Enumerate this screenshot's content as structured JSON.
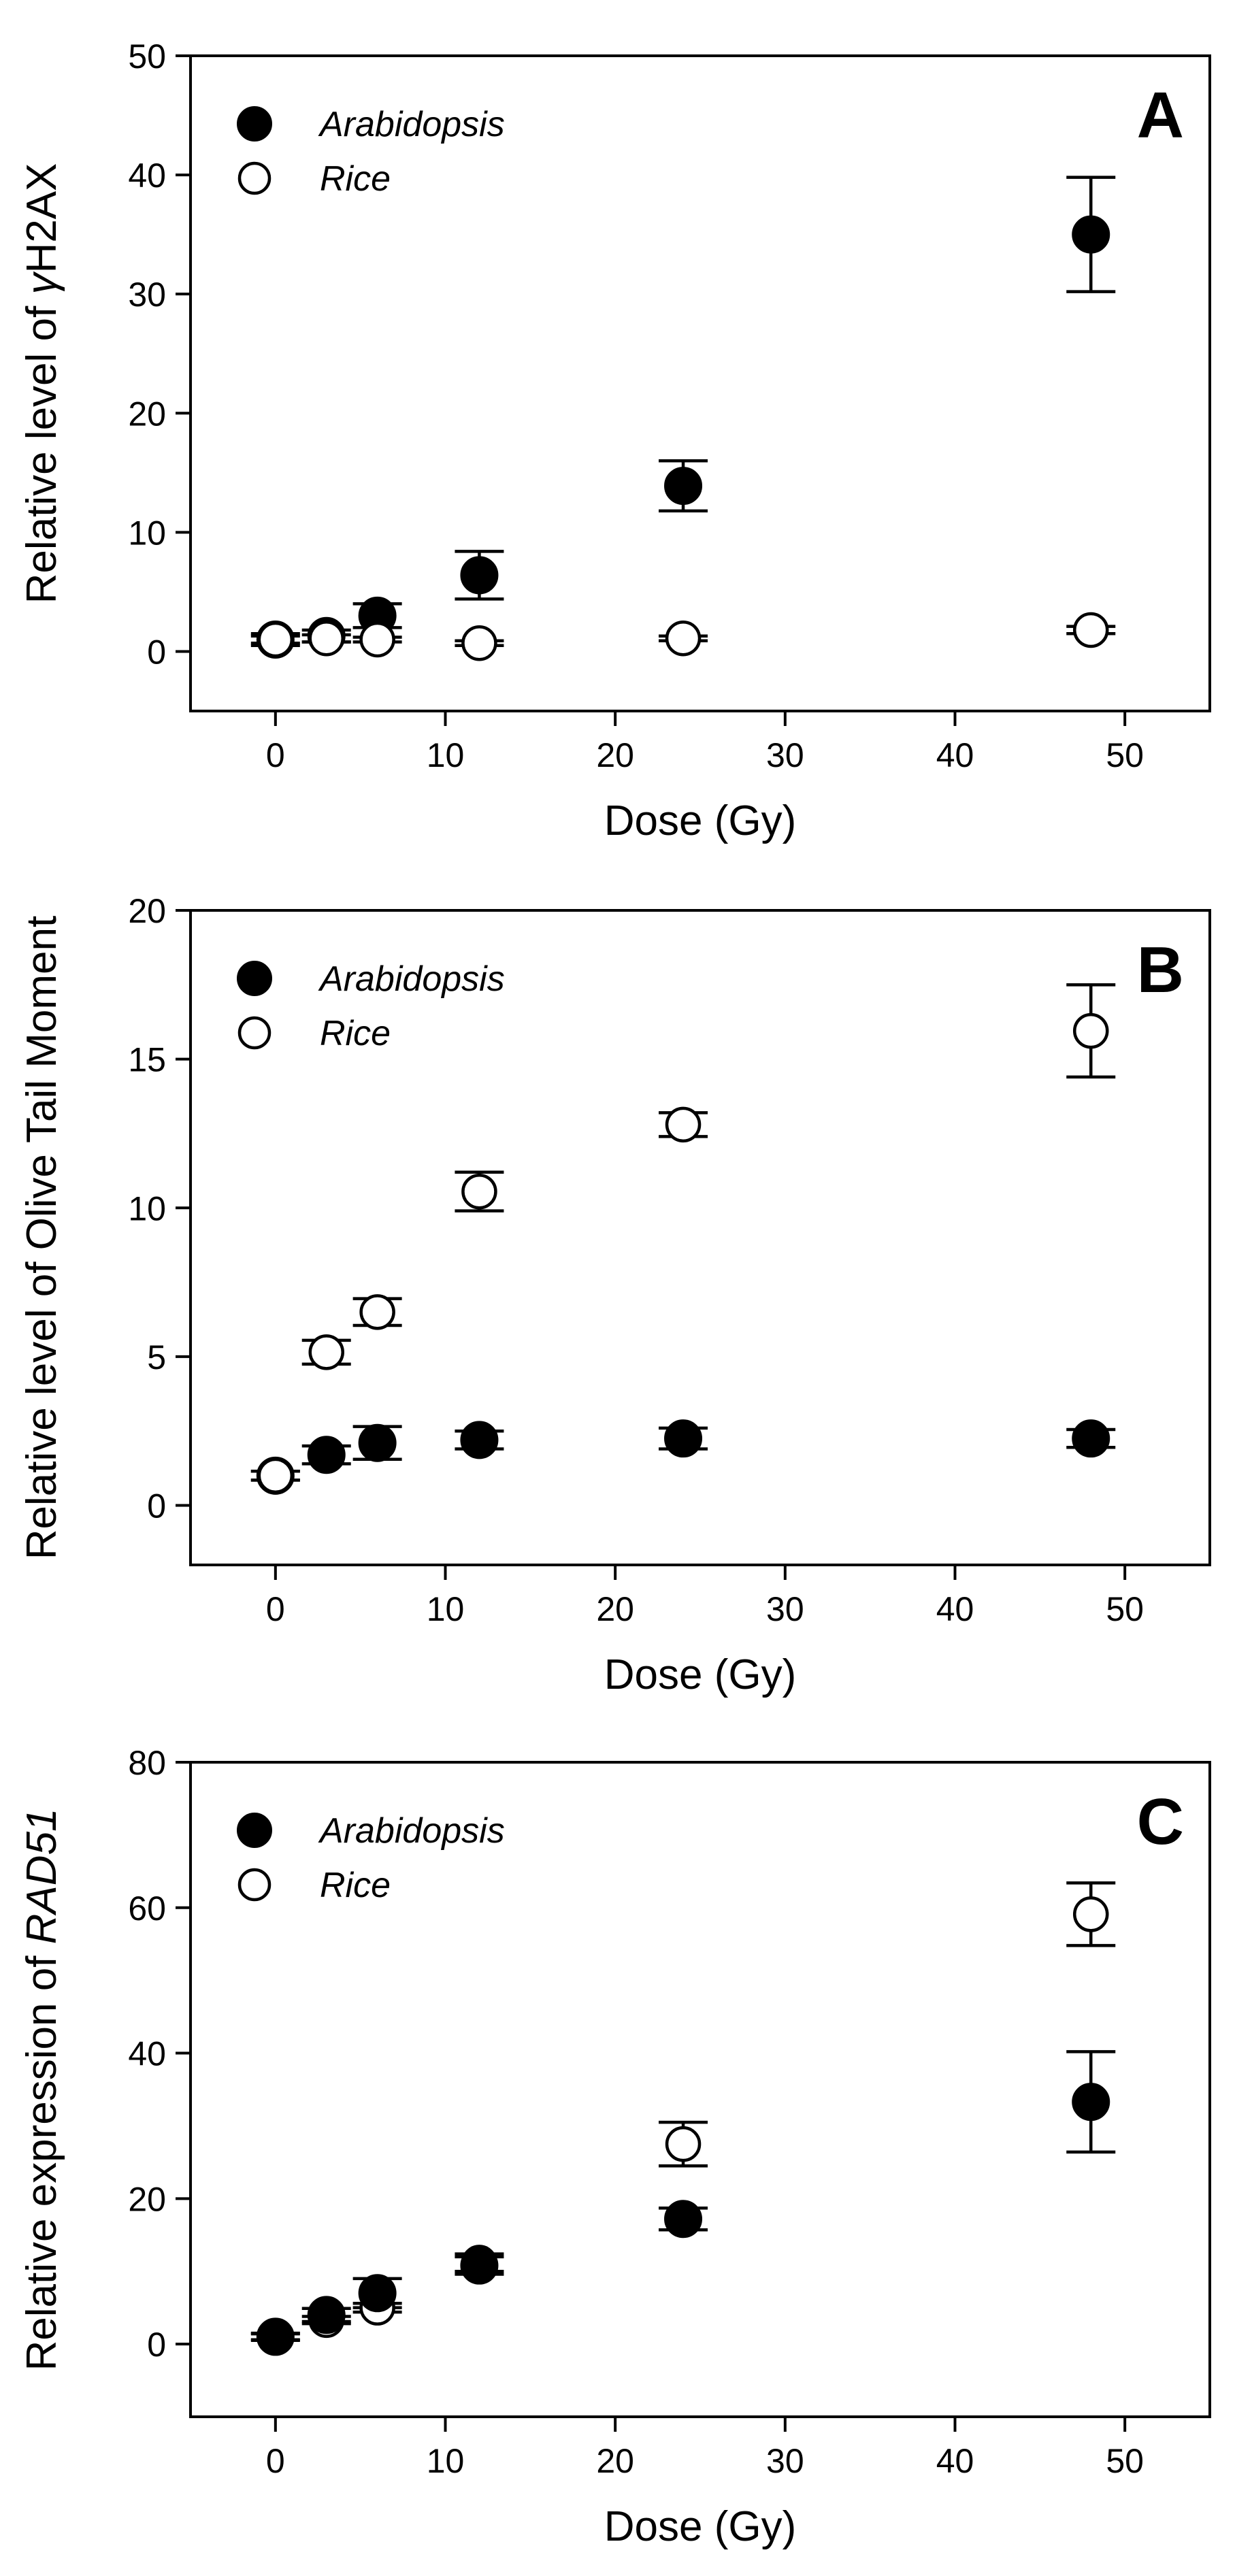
{
  "chart_data": [
    {
      "type": "scatter",
      "panel_label": "A",
      "xlabel": "Dose (Gy)",
      "ylabel_prefix": "Relative level of ",
      "ylabel_emph": "γ",
      "ylabel_suffix": "H2AX",
      "xlim": [
        -5,
        55
      ],
      "ylim": [
        -5,
        50
      ],
      "xticks": [
        0,
        10,
        20,
        30,
        40,
        50
      ],
      "yticks": [
        0,
        10,
        20,
        30,
        40,
        50
      ],
      "legend_position": "top-left",
      "series": [
        {
          "name": "Arabidopsis",
          "marker": "filled-circle",
          "x": [
            0,
            3,
            6,
            12,
            24,
            48
          ],
          "y": [
            1.0,
            1.3,
            3.0,
            6.4,
            13.9,
            35.0
          ],
          "err": [
            0.5,
            0.5,
            1.0,
            2.0,
            2.1,
            4.8
          ]
        },
        {
          "name": "Rice",
          "marker": "open-circle",
          "x": [
            0,
            3,
            6,
            12,
            24,
            48
          ],
          "y": [
            1.0,
            1.1,
            1.0,
            0.7,
            1.1,
            1.8
          ],
          "err": [
            0.3,
            0.3,
            0.2,
            0.2,
            0.2,
            0.3
          ]
        }
      ]
    },
    {
      "type": "scatter",
      "panel_label": "B",
      "xlabel": "Dose (Gy)",
      "ylabel_prefix": "Relative level of Olive Tail Moment",
      "ylabel_emph": "",
      "ylabel_suffix": "",
      "xlim": [
        -5,
        55
      ],
      "ylim": [
        -2,
        20
      ],
      "xticks": [
        0,
        10,
        20,
        30,
        40,
        50
      ],
      "yticks": [
        0,
        5,
        10,
        15,
        20
      ],
      "legend_position": "top-left",
      "series": [
        {
          "name": "Arabidopsis",
          "marker": "filled-circle",
          "x": [
            0,
            3,
            6,
            12,
            24,
            48
          ],
          "y": [
            1.0,
            1.7,
            2.1,
            2.2,
            2.25,
            2.25
          ],
          "err": [
            0.15,
            0.3,
            0.55,
            0.3,
            0.35,
            0.3
          ]
        },
        {
          "name": "Rice",
          "marker": "open-circle",
          "x": [
            0,
            3,
            6,
            12,
            24,
            48
          ],
          "y": [
            1.0,
            5.15,
            6.5,
            10.55,
            12.8,
            15.95
          ],
          "err": [
            0.15,
            0.4,
            0.45,
            0.65,
            0.4,
            1.55
          ]
        }
      ]
    },
    {
      "type": "scatter",
      "panel_label": "C",
      "xlabel": "Dose (Gy)",
      "ylabel_prefix": "Relative expression of ",
      "ylabel_emph": "RAD51",
      "ylabel_suffix": "",
      "xlim": [
        -5,
        55
      ],
      "ylim": [
        -10,
        80
      ],
      "xticks": [
        0,
        10,
        20,
        30,
        40,
        50
      ],
      "yticks": [
        0,
        20,
        40,
        60,
        80
      ],
      "legend_position": "top-left",
      "series": [
        {
          "name": "Arabidopsis",
          "marker": "filled-circle",
          "x": [
            0,
            3,
            6,
            12,
            24,
            48
          ],
          "y": [
            1.0,
            4.0,
            7.0,
            10.8,
            17.2,
            33.3
          ],
          "err": [
            0.5,
            0.9,
            2.0,
            1.2,
            1.5,
            6.9
          ]
        },
        {
          "name": "Rice",
          "marker": "open-circle",
          "x": [
            0,
            3,
            6,
            12,
            24,
            48
          ],
          "y": [
            1.0,
            3.3,
            5.0,
            11.2,
            27.5,
            59.1
          ],
          "err": [
            0.4,
            0.5,
            0.6,
            1.2,
            3.0,
            4.3
          ]
        }
      ]
    }
  ]
}
